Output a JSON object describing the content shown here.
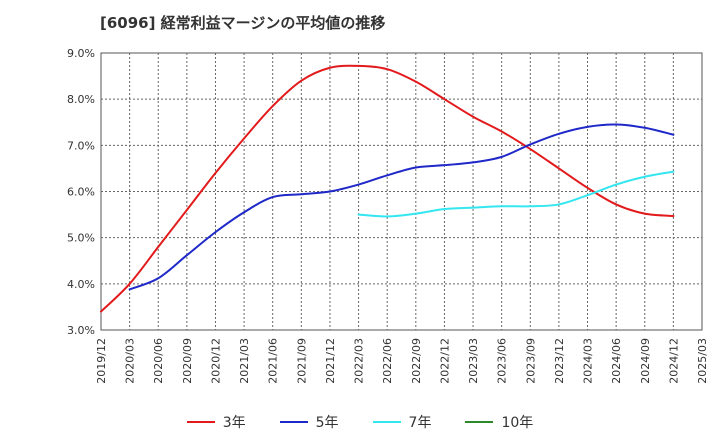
{
  "chart_data": {
    "type": "line",
    "title": "[6096]  経常利益マージンの平均値の推移",
    "xlabel": "",
    "ylabel": "",
    "x_ticks": [
      "2019/12",
      "2020/03",
      "2020/06",
      "2020/09",
      "2020/12",
      "2021/03",
      "2021/06",
      "2021/09",
      "2021/12",
      "2022/03",
      "2022/06",
      "2022/09",
      "2022/12",
      "2023/03",
      "2023/06",
      "2023/09",
      "2023/12",
      "2024/03",
      "2024/06",
      "2024/09",
      "2024/12",
      "2025/03"
    ],
    "y_ticks": [
      "3.0%",
      "4.0%",
      "5.0%",
      "6.0%",
      "7.0%",
      "8.0%",
      "9.0%"
    ],
    "ylim": [
      3.0,
      9.0
    ],
    "grid": true,
    "legend_position": "bottom",
    "series": [
      {
        "name": "3年",
        "color": "#e31a1c",
        "x": [
          "2019/12",
          "2020/03",
          "2020/06",
          "2020/09",
          "2020/12",
          "2021/03",
          "2021/06",
          "2021/09",
          "2021/12",
          "2022/03",
          "2022/06",
          "2022/09",
          "2022/12",
          "2023/03",
          "2023/06",
          "2023/09",
          "2023/12",
          "2024/03",
          "2024/06",
          "2024/09",
          "2024/12"
        ],
        "values": [
          3.4,
          4.0,
          4.8,
          5.6,
          6.4,
          7.15,
          7.85,
          8.4,
          8.68,
          8.72,
          8.65,
          8.38,
          8.0,
          7.62,
          7.3,
          6.92,
          6.5,
          6.08,
          5.72,
          5.52,
          5.47
        ]
      },
      {
        "name": "5年",
        "color": "#1f28c8",
        "x": [
          "2020/03",
          "2020/06",
          "2020/09",
          "2020/12",
          "2021/03",
          "2021/06",
          "2021/09",
          "2021/12",
          "2022/03",
          "2022/06",
          "2022/09",
          "2022/12",
          "2023/03",
          "2023/06",
          "2023/09",
          "2023/12",
          "2024/03",
          "2024/06",
          "2024/09",
          "2024/12"
        ],
        "values": [
          3.88,
          4.12,
          4.62,
          5.12,
          5.55,
          5.88,
          5.94,
          6.0,
          6.15,
          6.35,
          6.52,
          6.57,
          6.63,
          6.75,
          7.02,
          7.25,
          7.4,
          7.45,
          7.38,
          7.23
        ]
      },
      {
        "name": "7年",
        "color": "#33e6f0",
        "x": [
          "2022/03",
          "2022/06",
          "2022/09",
          "2022/12",
          "2023/03",
          "2023/06",
          "2023/09",
          "2023/12",
          "2024/03",
          "2024/06",
          "2024/09",
          "2024/12"
        ],
        "values": [
          5.5,
          5.46,
          5.52,
          5.62,
          5.65,
          5.68,
          5.68,
          5.72,
          5.92,
          6.15,
          6.32,
          6.43
        ]
      },
      {
        "name": "10年",
        "color": "#2a8a2a",
        "x": [],
        "values": []
      }
    ]
  }
}
